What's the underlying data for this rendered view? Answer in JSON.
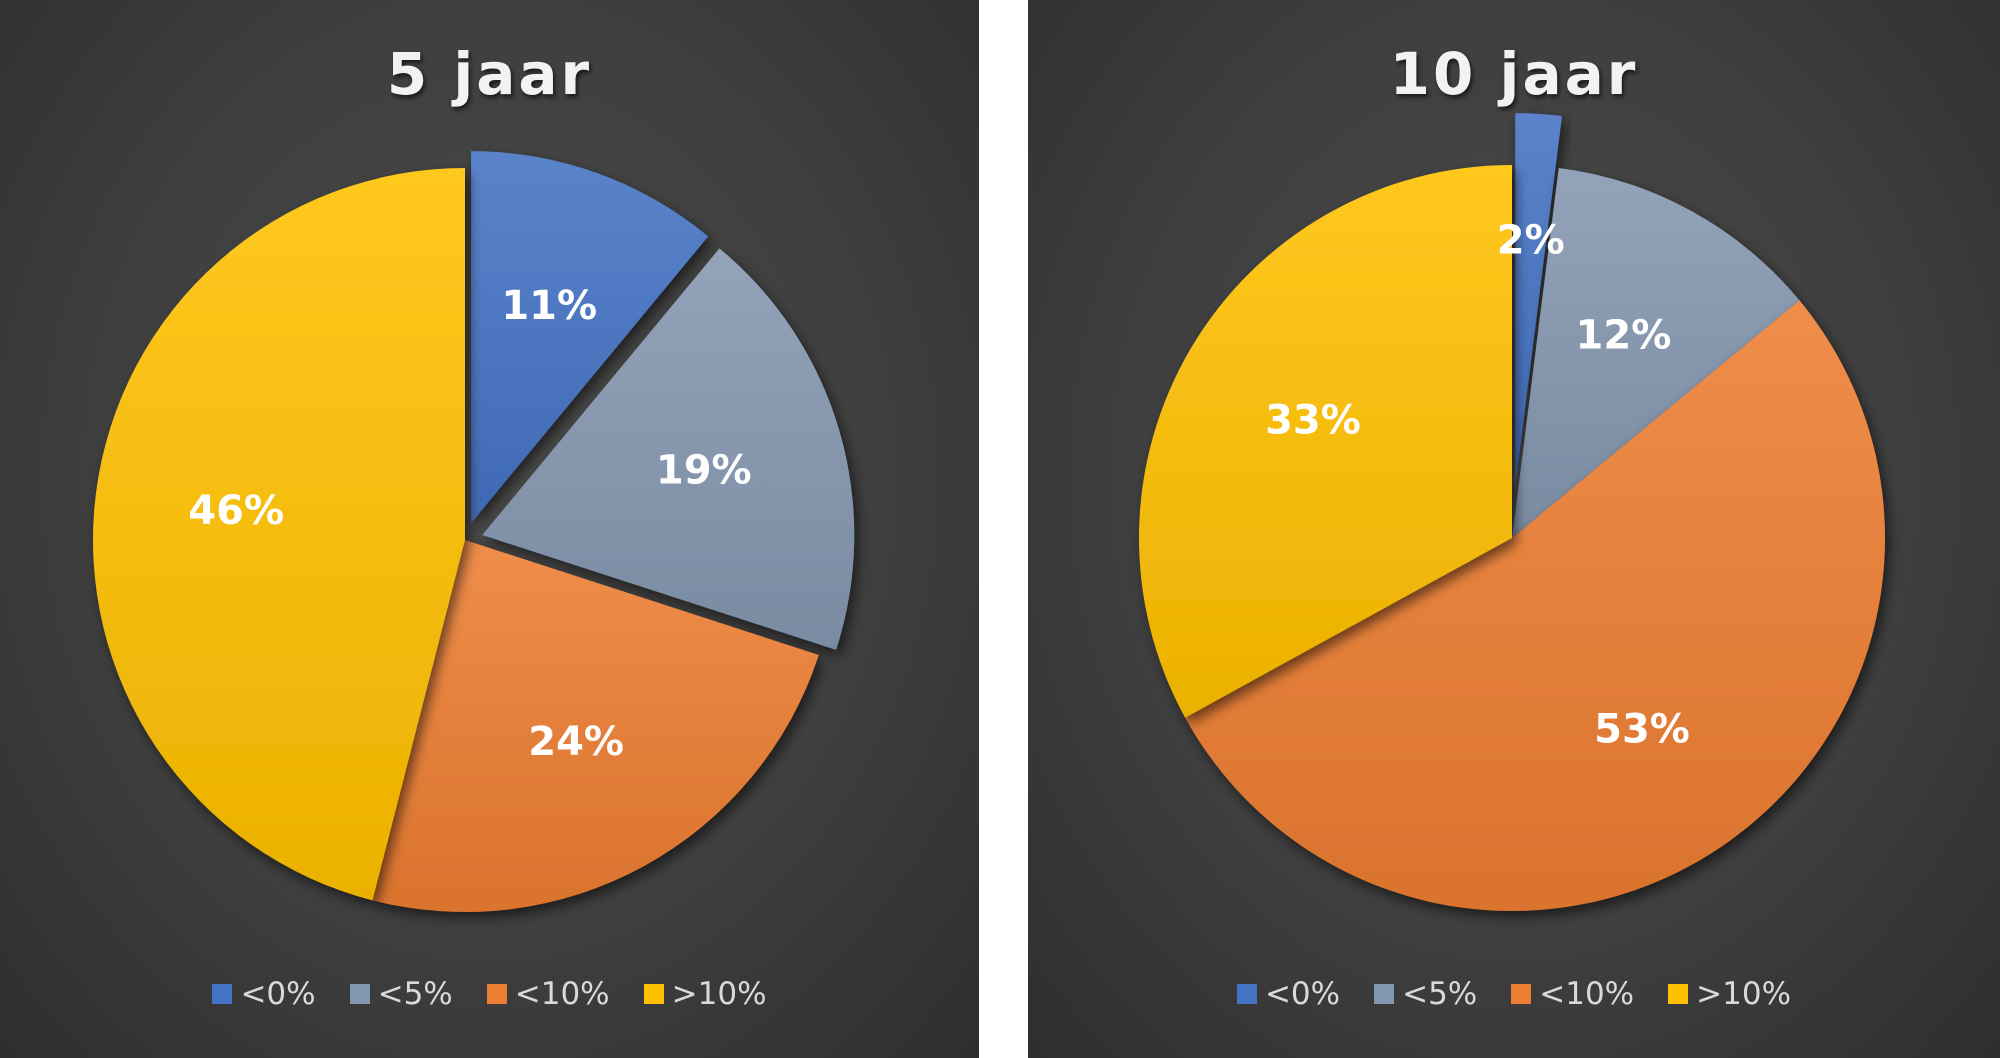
{
  "chart_data": [
    {
      "type": "pie",
      "title": "5 jaar",
      "categories": [
        "<0%",
        "<5%",
        "<10%",
        ">10%"
      ],
      "values": [
        11,
        19,
        24,
        46
      ],
      "labels": [
        "11%",
        "19%",
        "24%",
        "46%"
      ],
      "exploded": [
        true,
        true,
        false,
        false
      ],
      "colors": [
        "#4472c4",
        "#8497b0",
        "#ed7d31",
        "#ffc000"
      ],
      "legend": "bottom"
    },
    {
      "type": "pie",
      "title": "10 jaar",
      "categories": [
        "<0%",
        "<5%",
        "<10%",
        ">10%"
      ],
      "values": [
        2,
        12,
        53,
        33
      ],
      "labels": [
        "2%",
        "12%",
        "53%",
        "33%"
      ],
      "exploded": [
        true,
        false,
        false,
        false
      ],
      "colors": [
        "#4472c4",
        "#8497b0",
        "#ed7d31",
        "#ffc000"
      ],
      "legend": "bottom"
    }
  ]
}
